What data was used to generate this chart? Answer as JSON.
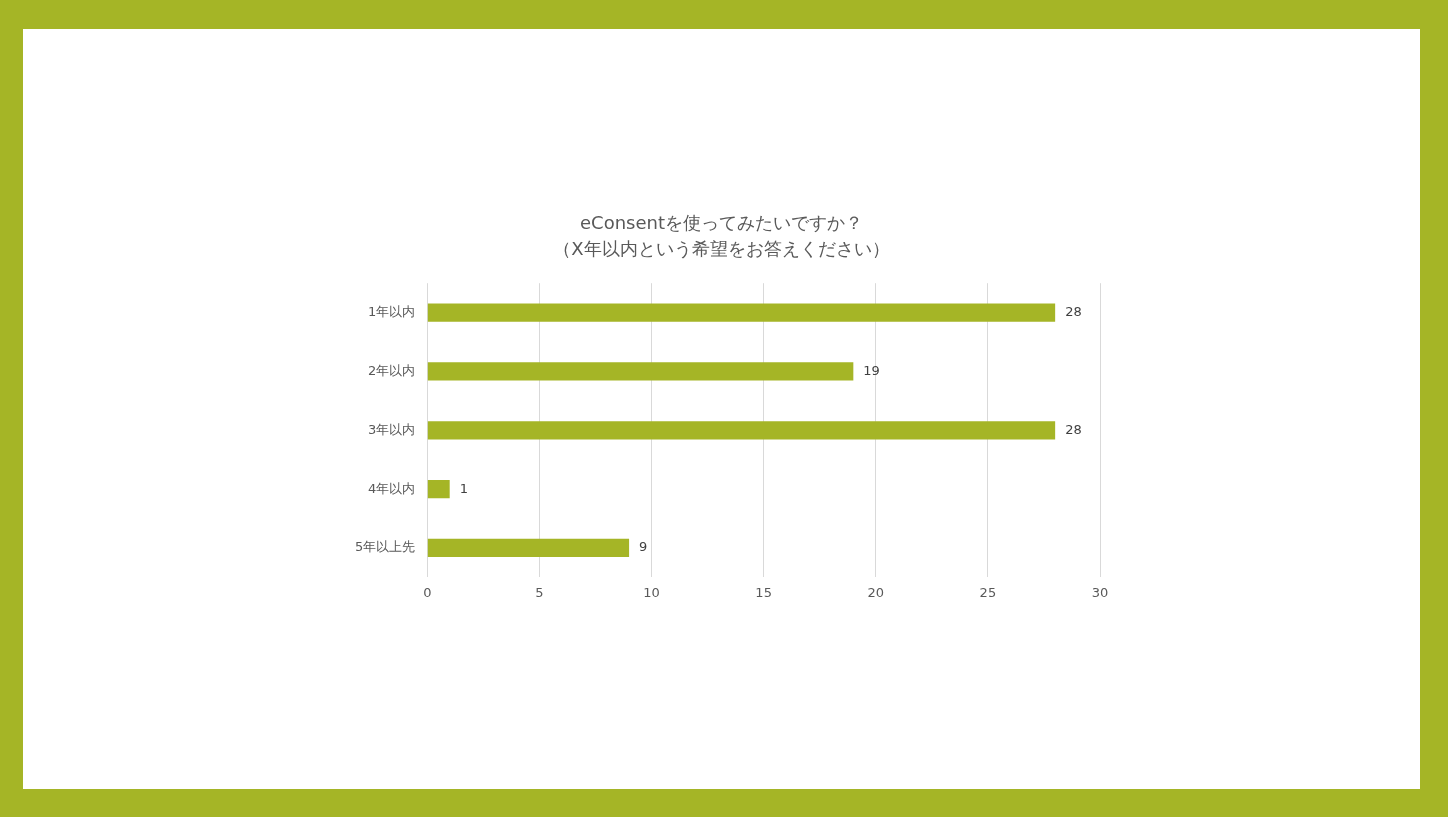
{
  "chart_data": {
    "type": "bar",
    "orientation": "horizontal",
    "title": "eConsentを使ってみたいですか？",
    "subtitle": "（X年以内という希望をお答えください）",
    "categories": [
      "1年以内",
      "2年以内",
      "3年以内",
      "4年以内",
      "5年以上先"
    ],
    "values": [
      28,
      19,
      28,
      1,
      9
    ],
    "color": "#a5b526",
    "xlim": [
      0,
      30
    ],
    "xticks": [
      0,
      5,
      10,
      15,
      20,
      25,
      30
    ],
    "grid": "x",
    "data_labels": true
  }
}
